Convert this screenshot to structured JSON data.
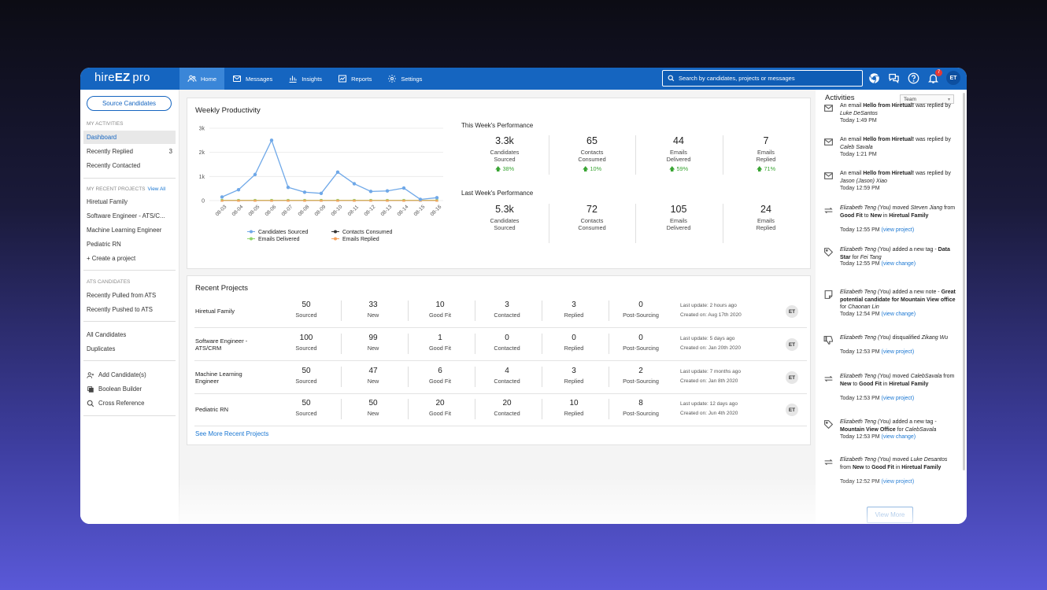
{
  "app": {
    "logo_prefix": "hire",
    "logo_bold": "EZ",
    "logo_suffix": "pro"
  },
  "nav": {
    "items": [
      {
        "label": "Home",
        "icon": "people-icon",
        "active": true
      },
      {
        "label": "Messages",
        "icon": "mail-icon"
      },
      {
        "label": "Insights",
        "icon": "bar-chart-icon"
      },
      {
        "label": "Reports",
        "icon": "trend-chart-icon"
      },
      {
        "label": "Settings",
        "icon": "gear-icon"
      }
    ],
    "search_placeholder": "Search by candidates, projects or messages",
    "notification_count": "7",
    "user_initials": "ET"
  },
  "sidebar": {
    "source_button": "Source Candidates",
    "my_activities_header": "MY ACTIVITIES",
    "my_activities": [
      {
        "label": "Dashboard",
        "count": "",
        "active": true
      },
      {
        "label": "Recently Replied",
        "count": "3"
      },
      {
        "label": "Recently Contacted",
        "count": ""
      }
    ],
    "recent_projects_header": "MY RECENT PROJECTS",
    "view_all": "View All",
    "recent_projects": [
      "Hiretual Family",
      "Software Engineer - ATS/C...",
      "Machine Learning Engineer",
      "Pediatric RN",
      "+ Create a project"
    ],
    "ats_header": "ATS CANDIDATES",
    "ats_items": [
      "Recently Pulled from ATS",
      "Recently Pushed to ATS"
    ],
    "candidate_items": [
      "All Candidates",
      "Duplicates"
    ],
    "tools": [
      {
        "label": "Add Candidate(s)",
        "icon": "add-person-icon"
      },
      {
        "label": "Boolean Builder",
        "icon": "boolean-icon"
      },
      {
        "label": "Cross Reference",
        "icon": "magnifier-icon"
      }
    ]
  },
  "weekly": {
    "title": "Weekly Productivity",
    "this_week_title": "This Week's Performance",
    "last_week_title": "Last Week's Performance",
    "this_week": [
      {
        "value": "3.3k",
        "label1": "Candidates",
        "label2": "Sourced",
        "pct": "38%"
      },
      {
        "value": "65",
        "label1": "Contacts",
        "label2": "Consumed",
        "pct": "10%"
      },
      {
        "value": "44",
        "label1": "Emails",
        "label2": "Delivered",
        "pct": "59%"
      },
      {
        "value": "7",
        "label1": "Emails",
        "label2": "Replied",
        "pct": "71%"
      }
    ],
    "last_week": [
      {
        "value": "5.3k",
        "label1": "Candidates",
        "label2": "Sourced"
      },
      {
        "value": "72",
        "label1": "Contacts",
        "label2": "Consumed"
      },
      {
        "value": "105",
        "label1": "Emails",
        "label2": "Delivered"
      },
      {
        "value": "24",
        "label1": "Emails",
        "label2": "Replied"
      }
    ]
  },
  "chart_data": {
    "type": "line",
    "title": "",
    "x": [
      "08-03",
      "08-04",
      "08-05",
      "08-06",
      "08-07",
      "08-08",
      "08-09",
      "08-10",
      "08-11",
      "08-12",
      "08-13",
      "08-14",
      "08-15",
      "08-16"
    ],
    "ylim": [
      0,
      3000
    ],
    "yticks": [
      "0",
      "1k",
      "2k",
      "3k"
    ],
    "ytick_values": [
      0,
      1000,
      2000,
      3000
    ],
    "grid": true,
    "legend_position": "bottom",
    "series": [
      {
        "name": "Candidates Sourced",
        "color": "#6fa8e8",
        "values": [
          150,
          450,
          1080,
          2500,
          550,
          350,
          300,
          1180,
          700,
          380,
          400,
          520,
          50,
          120
        ]
      },
      {
        "name": "Contacts Consumed",
        "color": "#333333",
        "values": [
          10,
          10,
          10,
          10,
          10,
          10,
          10,
          10,
          10,
          10,
          10,
          10,
          10,
          10
        ]
      },
      {
        "name": "Emails Delivered",
        "color": "#8fd46a",
        "values": [
          15,
          15,
          15,
          15,
          15,
          15,
          15,
          15,
          15,
          15,
          15,
          15,
          15,
          15
        ]
      },
      {
        "name": "Emails Replied",
        "color": "#f5a05a",
        "values": [
          5,
          5,
          5,
          5,
          5,
          5,
          5,
          5,
          5,
          5,
          5,
          5,
          5,
          5
        ]
      }
    ]
  },
  "recent_projects": {
    "title": "Recent Projects",
    "see_more": "See More Recent Projects",
    "rows": [
      {
        "name": "Hiretual Family",
        "sourced": "50",
        "new": "33",
        "good_fit": "10",
        "contacted": "3",
        "replied": "3",
        "post_sourcing": "0",
        "last_update": "Last update: 2 hours ago",
        "created": "Created on: Aug 17th 2020",
        "owner": "ET"
      },
      {
        "name": "Software Engineer - ATS/CRM",
        "sourced": "100",
        "new": "99",
        "good_fit": "1",
        "contacted": "0",
        "replied": "0",
        "post_sourcing": "0",
        "last_update": "Last update: 5 days ago",
        "created": "Created on: Jan 20th 2020",
        "owner": "ET"
      },
      {
        "name": "Machine Learning Engineer",
        "sourced": "50",
        "new": "47",
        "good_fit": "6",
        "contacted": "4",
        "replied": "3",
        "post_sourcing": "2",
        "last_update": "Last update: 7 months ago",
        "created": "Created on: Jan 8th 2020",
        "owner": "ET"
      },
      {
        "name": "Pediatric RN",
        "sourced": "50",
        "new": "50",
        "good_fit": "20",
        "contacted": "20",
        "replied": "10",
        "post_sourcing": "8",
        "last_update": "Last update: 12 days ago",
        "created": "Created on: Jun 4th 2020",
        "owner": "ET"
      }
    ],
    "labels": {
      "sourced": "Sourced",
      "new": "New",
      "good_fit": "Good Fit",
      "contacted": "Contacted",
      "replied": "Replied",
      "post_sourcing": "Post-Sourcing"
    }
  },
  "activities": {
    "title": "Activities",
    "filter": "Team",
    "view_more": "View More",
    "items": [
      {
        "icon": "mail-icon",
        "html": "An email <b>Hello from Hiretual!</b> was replied by <i>Luke DeSantos</i>",
        "time": "Today 1:49 PM",
        "link": ""
      },
      {
        "icon": "mail-icon",
        "html": "An email <b>Hello from Hiretual!</b> was replied by <i>Caleb Savala</i>",
        "time": "Today 1:21 PM",
        "link": ""
      },
      {
        "icon": "mail-icon",
        "html": "An email <b>Hello from Hiretual!</b> was replied by <i>Jason (Jason) Xiao</i>",
        "time": "Today 12:59 PM",
        "link": ""
      },
      {
        "icon": "move-icon",
        "html": "<i>Elizabeth Teng (You)</i> moved <i>Steven Jiang</i> from <b>Good Fit</b> to <b>New</b> in <b>Hiretual Family</b>",
        "time": "Today 12:55 PM",
        "link": "(view project)"
      },
      {
        "icon": "tag-icon",
        "html": "<i>Elizabeth Teng (You)</i> added a new tag - <b>Data Star</b> for <i>Fei Tang</i>",
        "time": "Today 12:55 PM",
        "link": "(view change)"
      },
      {
        "icon": "note-icon",
        "html": "<i>Elizabeth Teng (You)</i> added a new note - <b>Great potential candidate for Mountain View office</b> for <i>Chaonan Lin</i>",
        "time": "Today 12:54 PM",
        "link": "(view change)"
      },
      {
        "icon": "thumbs-down-icon",
        "html": "<i>Elizabeth Teng (You)</i> disqualified <i>Zikang Wu</i>",
        "time": "Today 12:53 PM",
        "link": "(view project)"
      },
      {
        "icon": "move-icon",
        "html": "<i>Elizabeth Teng (You)</i> moved <i>CalebSavala</i> from <b>New</b> to <b>Good Fit</b> in <b>Hiretual Family</b>",
        "time": "Today 12:53 PM",
        "link": "(view project)"
      },
      {
        "icon": "tag-icon",
        "html": "<i>Elizabeth Teng (You)</i> added a new tag - <b>Mountain View Office</b> for <i>CalebSavala</i>",
        "time": "Today 12:53 PM",
        "link": "(view change)"
      },
      {
        "icon": "move-icon",
        "html": "<i>Elizabeth Teng (You)</i> moved <i>Luke Desantos</i> from <b>New</b> to <b>Good Fit</b> in <b>Hiretual Family</b>",
        "time": "Today 12:52 PM",
        "link": "(view project)"
      }
    ]
  }
}
